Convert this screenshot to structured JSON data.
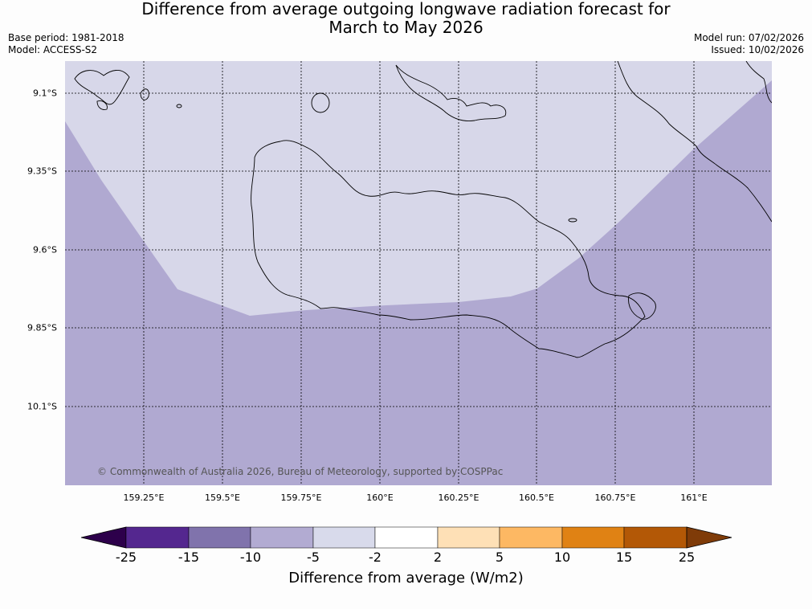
{
  "title": {
    "line1": "Difference from average outgoing longwave radiation forecast for",
    "line2": "March to May 2026"
  },
  "meta": {
    "base_period": "Base period: 1981-2018",
    "model": "Model: ACCESS-S2",
    "model_run": "Model run: 07/02/2026",
    "issued": "Issued: 10/02/2026"
  },
  "map": {
    "lat_labels": [
      "9.1°S",
      "9.35°S",
      "9.6°S",
      "9.85°S",
      "10.1°S"
    ],
    "lon_labels": [
      "159.25°E",
      "159.5°E",
      "159.75°E",
      "160°E",
      "160.25°E",
      "160.5°E",
      "160.75°E",
      "161°E"
    ],
    "copyright": "© Commonwealth of Australia 2026, Bureau of Meteorology, supported by COSPPac",
    "colors": {
      "light": "#d7d7e9",
      "dark": "#b0a9d1",
      "coast": "#000000"
    }
  },
  "colorbar": {
    "title": "Difference from average (W/m2)",
    "ticks": [
      "-25",
      "-15",
      "-10",
      "-5",
      "-2",
      "2",
      "5",
      "10",
      "15",
      "25"
    ],
    "colors": [
      "#54278f",
      "#8073ac",
      "#b2abd2",
      "#d8daeb",
      "#ffffff",
      "#fee0b6",
      "#fdb863",
      "#e08214",
      "#b35806"
    ],
    "under_color": "#2d004b",
    "over_color": "#7f3b08"
  }
}
